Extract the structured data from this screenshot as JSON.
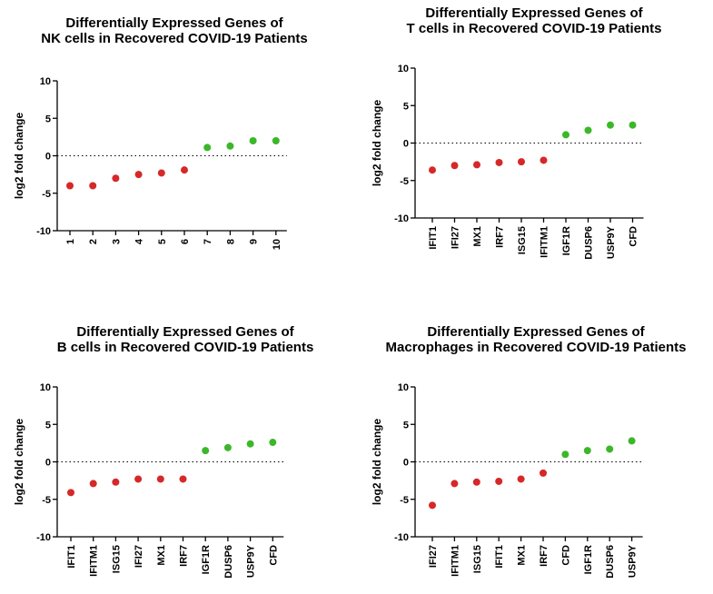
{
  "colors": {
    "down": "#d62828",
    "up": "#3cb72a",
    "axis": "#000000"
  },
  "chart_data": [
    {
      "type": "scatter",
      "title": [
        "Differentially Expressed Genes of",
        "NK cells in Recovered COVID-19 Patients"
      ],
      "ylabel": "log2 fold change",
      "ylim": [
        -10,
        10
      ],
      "yticks": [
        10,
        5,
        0,
        -5,
        -10
      ],
      "reference_line": 0,
      "categories": [
        "1",
        "2",
        "3",
        "4",
        "5",
        "6",
        "7",
        "8",
        "9",
        "10"
      ],
      "values": [
        -4.0,
        -4.0,
        -3.0,
        -2.5,
        -2.3,
        -1.9,
        1.1,
        1.3,
        2.0,
        2.0
      ],
      "directions": [
        "down",
        "down",
        "down",
        "down",
        "down",
        "down",
        "up",
        "up",
        "up",
        "up"
      ]
    },
    {
      "type": "scatter",
      "title": [
        "Differentially Expressed Genes of",
        "T cells in Recovered COVID-19 Patients"
      ],
      "ylabel": "log2 fold change",
      "ylim": [
        -10,
        10
      ],
      "yticks": [
        10,
        5,
        0,
        -5,
        -10
      ],
      "reference_line": 0,
      "categories": [
        "IFIT1",
        "IFI27",
        "MX1",
        "IRF7",
        "ISG15",
        "IFITM1",
        "IGF1R",
        "DUSP6",
        "USP9Y",
        "CFD"
      ],
      "values": [
        -3.6,
        -3.0,
        -2.9,
        -2.6,
        -2.5,
        -2.3,
        1.1,
        1.7,
        2.4,
        2.4
      ],
      "directions": [
        "down",
        "down",
        "down",
        "down",
        "down",
        "down",
        "up",
        "up",
        "up",
        "up"
      ]
    },
    {
      "type": "scatter",
      "title": [
        "Differentially Expressed Genes of",
        "B cells in Recovered COVID-19 Patients"
      ],
      "ylabel": "log2 fold change",
      "ylim": [
        -10,
        10
      ],
      "yticks": [
        10,
        5,
        0,
        -5,
        -10
      ],
      "reference_line": 0,
      "categories": [
        "IFIT1",
        "IFITM1",
        "ISG15",
        "IFI27",
        "MX1",
        "IRF7",
        "IGF1R",
        "DUSP6",
        "USP9Y",
        "CFD"
      ],
      "values": [
        -4.1,
        -2.9,
        -2.7,
        -2.3,
        -2.3,
        -2.3,
        1.5,
        1.9,
        2.4,
        2.6
      ],
      "directions": [
        "down",
        "down",
        "down",
        "down",
        "down",
        "down",
        "up",
        "up",
        "up",
        "up"
      ]
    },
    {
      "type": "scatter",
      "title": [
        "Differentially Expressed Genes of",
        "Macrophages in Recovered COVID-19 Patients"
      ],
      "ylabel": "log2 fold change",
      "ylim": [
        -10,
        10
      ],
      "yticks": [
        10,
        5,
        0,
        -5,
        -10
      ],
      "reference_line": 0,
      "categories": [
        "IFI27",
        "IFITM1",
        "ISG15",
        "IFIT1",
        "MX1",
        "IRF7",
        "CFD",
        "IGF1R",
        "DUSP6",
        "USP9Y"
      ],
      "values": [
        -5.8,
        -2.9,
        -2.7,
        -2.6,
        -2.3,
        -1.5,
        1.0,
        1.5,
        1.7,
        2.8
      ],
      "directions": [
        "down",
        "down",
        "down",
        "down",
        "down",
        "down",
        "up",
        "up",
        "up",
        "up"
      ]
    }
  ]
}
